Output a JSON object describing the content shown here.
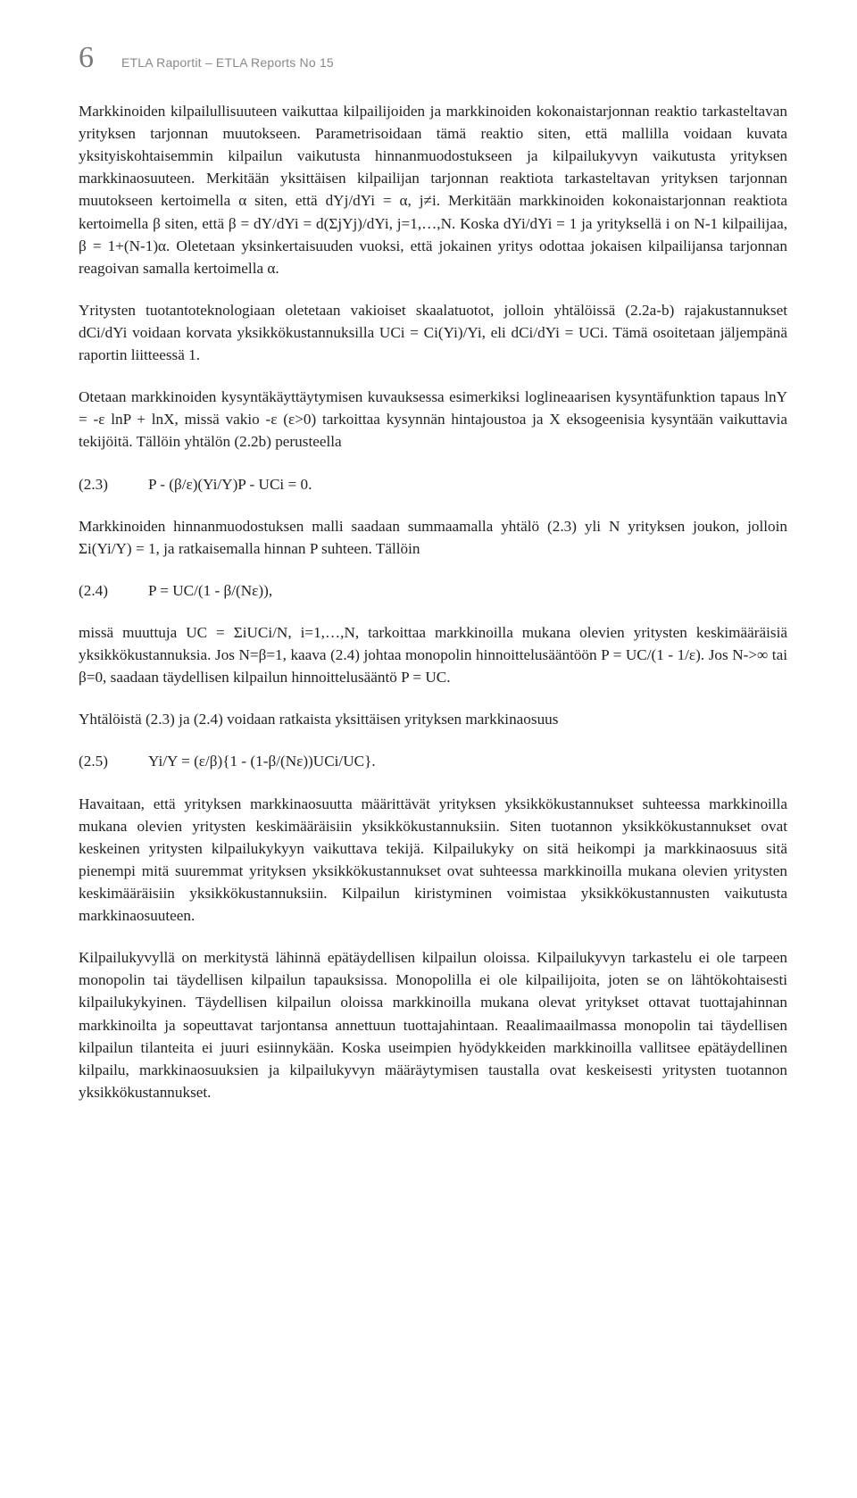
{
  "header": {
    "page_number": "6",
    "report_line": "ETLA Raportit – ETLA Reports     No 15"
  },
  "paragraphs": {
    "p1": "Markkinoiden kilpailullisuuteen vaikuttaa kilpailijoiden ja markkinoiden kokonaistarjonnan reaktio tarkasteltavan yrityksen tarjonnan muutokseen. Parametrisoidaan tämä reaktio siten, että mallilla voidaan kuvata yksityiskohtaisemmin kilpailun vaikutusta hinnanmuodostukseen ja kilpailukyvyn vaikutusta yrityksen markkinaosuuteen. Merkitään yksittäisen kilpailijan tarjonnan reaktiota tarkasteltavan yrityksen tarjonnan muutokseen kertoimella α siten, että dYj/dYi = α, j≠i. Merkitään markkinoiden kokonaistarjonnan reaktiota kertoimella β siten, että β = dY/dYi = d(ΣjYj)/dYi, j=1,…,N. Koska dYi/dYi = 1 ja yrityksellä i on N-1 kilpailijaa, β = 1+(N-1)α. Oletetaan yksinkertaisuuden vuoksi, että jokainen yritys odottaa jokaisen kilpailijansa tarjonnan reagoivan samalla kertoimella α.",
    "p2": "Yritysten tuotantoteknologiaan oletetaan vakioiset skaalatuotot, jolloin yhtälöissä (2.2a-b) rajakustannukset dCi/dYi voidaan korvata yksikkökustannuksilla UCi = Ci(Yi)/Yi, eli dCi/dYi = UCi. Tämä osoitetaan jäljempänä raportin liitteessä 1.",
    "p3": "Otetaan markkinoiden kysyntäkäyttäytymisen kuvauksessa esimerkiksi loglineaarisen kysyntäfunktion tapaus lnY = -ε lnP + lnX, missä vakio -ε (ε>0) tarkoittaa kysynnän hintajoustoa ja X eksogeenisia kysyntään vaikuttavia tekijöitä. Tällöin yhtälön (2.2b) perusteella",
    "p4": "Markkinoiden hinnanmuodostuksen malli saadaan summaamalla yhtälö (2.3) yli N yrityksen joukon, jolloin Σi(Yi/Y) = 1, ja ratkaisemalla hinnan P suhteen. Tällöin",
    "p5": "missä muuttuja UC = ΣiUCi/N, i=1,…,N, tarkoittaa markkinoilla mukana olevien yritysten keskimääräisiä yksikkökustannuksia. Jos N=β=1, kaava (2.4) johtaa monopolin hinnoittelusääntöön P = UC/(1 - 1/ε). Jos N->∞ tai β=0, saadaan täydellisen kilpailun hinnoittelusääntö P = UC.",
    "p6": "Yhtälöistä (2.3) ja (2.4) voidaan ratkaista yksittäisen yrityksen markkinaosuus",
    "p7": "Havaitaan, että yrityksen markkinaosuutta määrittävät yrityksen yksikkökustannukset suhteessa markkinoilla mukana olevien yritysten keskimääräisiin yksikkökustannuksiin. Siten tuotannon yksikkökustannukset ovat keskeinen yritysten kilpailukykyyn vaikuttava tekijä. Kilpailukyky on sitä heikompi ja markkinaosuus sitä pienempi mitä suuremmat yrityksen yksikkökustannukset ovat suhteessa markkinoilla mukana olevien yritysten keskimääräisiin yksikkökustannuksiin. Kilpailun kiristyminen voimistaa yksikkökustannusten vaikutusta markkinaosuuteen.",
    "p8": "Kilpailukyvyllä on merkitystä lähinnä epätäydellisen kilpailun oloissa. Kilpailukyvyn tarkastelu ei ole tarpeen monopolin tai täydellisen kilpailun tapauksissa. Monopolilla ei ole kilpailijoita, joten se on lähtökohtaisesti kilpailukykyinen. Täydellisen kilpailun oloissa markkinoilla mukana olevat yritykset ottavat tuottajahinnan markkinoilta ja sopeuttavat tarjontansa annettuun tuottajahintaan. Reaalimaailmassa monopolin tai täydellisen kilpailun tilanteita ei juuri esiinnykään. Koska useimpien hyödykkeiden markkinoilla vallitsee epätäydellinen kilpailu, markkinaosuuksien ja kilpailukyvyn määräytymisen taustalla ovat keskeisesti yritysten tuotannon yksikkökustannukset."
  },
  "equations": {
    "e23": {
      "label": "(2.3)",
      "body": "P - (β/ε)(Yi/Y)P - UCi = 0."
    },
    "e24": {
      "label": "(2.4)",
      "body": "P = UC/(1 - β/(Nε)),"
    },
    "e25": {
      "label": "(2.5)",
      "body": "Yi/Y = (ε/β){1 - (1-β/(Nε))UCi/UC}."
    }
  }
}
